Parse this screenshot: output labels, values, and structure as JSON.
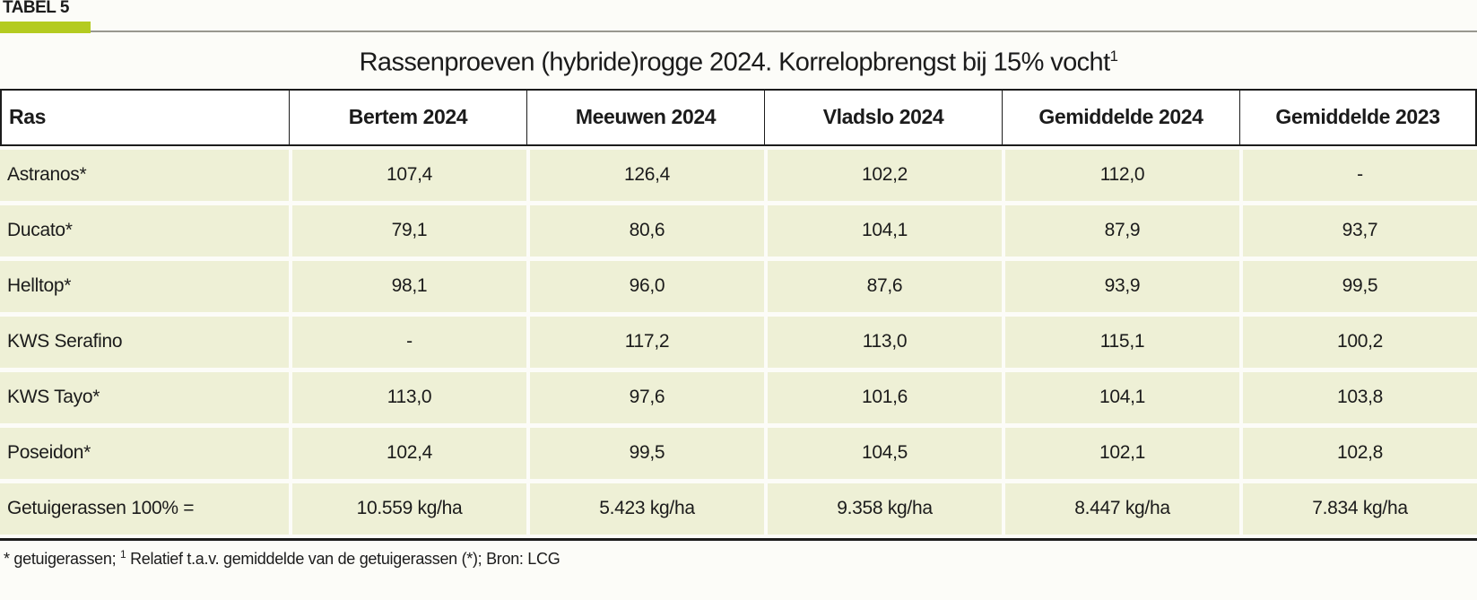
{
  "page": {
    "label": "TABEL 5"
  },
  "colors": {
    "accent_green": "#b4cb20",
    "row_background": "#eef0d6",
    "border_black": "#1c1c1c",
    "rule_gray": "#98978f"
  },
  "table": {
    "title": "Rassenproeven (hybride)rogge 2024.  Korrelopbrengst bij 15% vocht",
    "title_sup": "1",
    "columns": [
      "Ras",
      "Bertem 2024",
      "Meeuwen 2024",
      "Vladslo 2024",
      "Gemiddelde 2024",
      "Gemiddelde 2023"
    ],
    "rows": [
      {
        "ras": "Astranos*",
        "values": [
          "107,4",
          "126,4",
          "102,2",
          "112,0",
          "-"
        ]
      },
      {
        "ras": "Ducato*",
        "values": [
          "79,1",
          "80,6",
          "104,1",
          "87,9",
          "93,7"
        ]
      },
      {
        "ras": "Helltop*",
        "values": [
          "98,1",
          "96,0",
          "87,6",
          "93,9",
          "99,5"
        ]
      },
      {
        "ras": "KWS Serafino",
        "values": [
          "-",
          "117,2",
          "113,0",
          "115,1",
          "100,2"
        ]
      },
      {
        "ras": "KWS Tayo*",
        "values": [
          "113,0",
          "97,6",
          "101,6",
          "104,1",
          "103,8"
        ]
      },
      {
        "ras": "Poseidon*",
        "values": [
          "102,4",
          "99,5",
          "104,5",
          "102,1",
          "102,8"
        ]
      },
      {
        "ras": "Getuigerassen 100% =",
        "values": [
          "10.559 kg/ha",
          "5.423 kg/ha",
          "9.358 kg/ha",
          "8.447 kg/ha",
          "7.834 kg/ha"
        ]
      }
    ]
  },
  "footnote": {
    "prefix": "* getuigerassen;  ",
    "sup": "1",
    "text": " Relatief t.a.v. gemiddelde van de getuigerassen (*); Bron: LCG"
  }
}
